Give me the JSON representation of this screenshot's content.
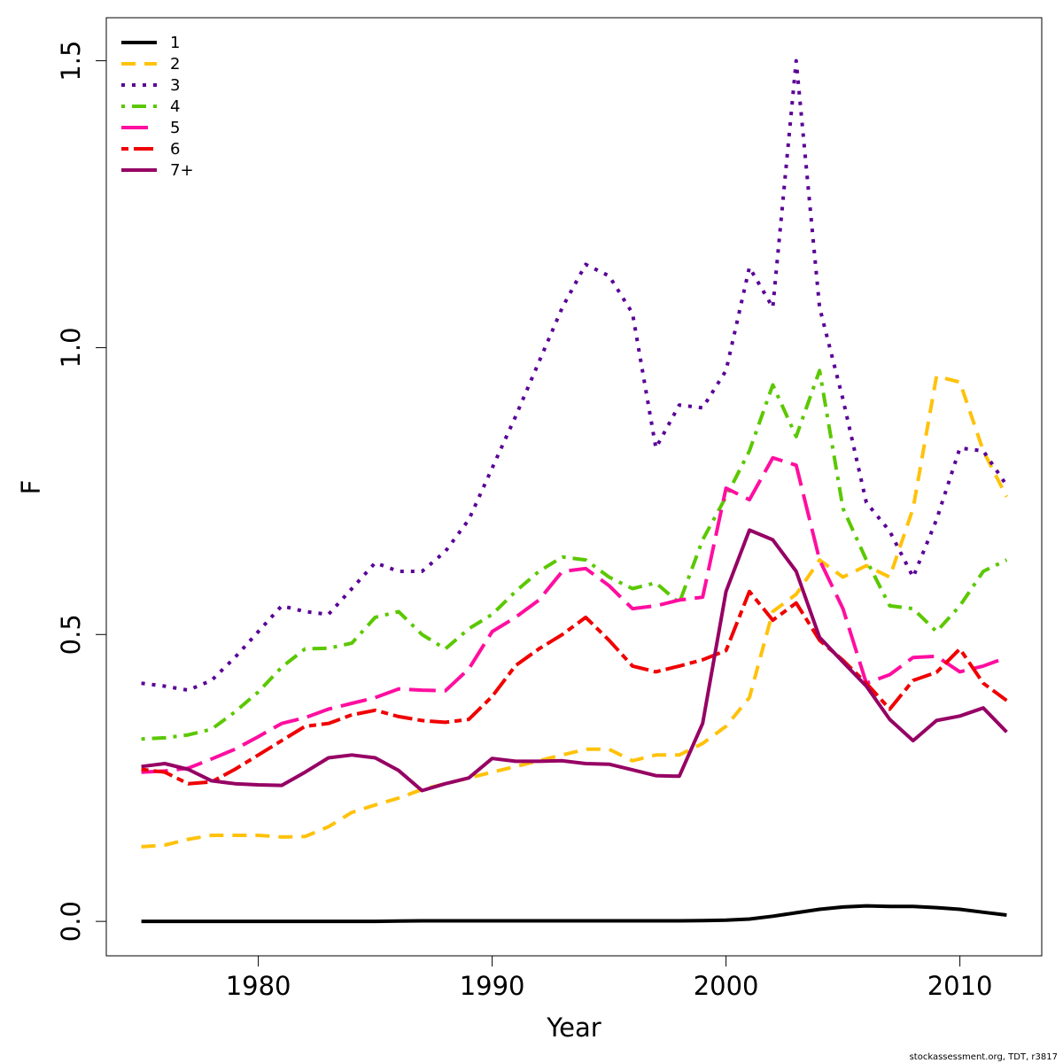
{
  "chart_data": {
    "type": "line",
    "xlabel": "Year",
    "ylabel": "F",
    "xlim": [
      1973.5,
      2013.5
    ],
    "ylim": [
      -0.06,
      1.575
    ],
    "x_ticks": [
      1980,
      1990,
      2000,
      2010
    ],
    "y_ticks": [
      0.0,
      0.5,
      1.0,
      1.5
    ],
    "x_tick_labels": [
      "1980",
      "1990",
      "2000",
      "2010"
    ],
    "y_tick_labels": [
      "0.0",
      "0.5",
      "1.0",
      "1.5"
    ],
    "legend_position": "top-left",
    "grid": false,
    "x": [
      1975,
      1976,
      1977,
      1978,
      1979,
      1980,
      1981,
      1982,
      1983,
      1984,
      1985,
      1986,
      1987,
      1988,
      1989,
      1990,
      1991,
      1992,
      1993,
      1994,
      1995,
      1996,
      1997,
      1998,
      1999,
      2000,
      2001,
      2002,
      2003,
      2004,
      2005,
      2006,
      2007,
      2008,
      2009,
      2010,
      2011,
      2012
    ],
    "series": [
      {
        "name": "1",
        "color": "#000000",
        "dash": "solid",
        "values": [
          0.0,
          0.0,
          0.0,
          0.0,
          0.0,
          0.0,
          0.0,
          0.0,
          0.0,
          0.0,
          0.0,
          0.0005,
          0.001,
          0.001,
          0.001,
          0.001,
          0.001,
          0.001,
          0.001,
          0.001,
          0.001,
          0.001,
          0.001,
          0.001,
          0.0015,
          0.002,
          0.004,
          0.009,
          0.015,
          0.021,
          0.025,
          0.027,
          0.026,
          0.026,
          0.024,
          0.021,
          0.016,
          0.011
        ]
      },
      {
        "name": "2",
        "color": "#FFC20A",
        "dash": "dashed",
        "values": [
          0.13,
          0.133,
          0.143,
          0.15,
          0.15,
          0.15,
          0.147,
          0.148,
          0.165,
          0.19,
          0.203,
          0.215,
          0.23,
          0.24,
          0.25,
          0.26,
          0.27,
          0.28,
          0.29,
          0.3,
          0.3,
          0.28,
          0.29,
          0.29,
          0.31,
          0.34,
          0.39,
          0.54,
          0.57,
          0.63,
          0.6,
          0.62,
          0.6,
          0.72,
          0.95,
          0.94,
          0.82,
          0.74
        ]
      },
      {
        "name": "3",
        "color": "#5A0096",
        "dash": "dotted",
        "values": [
          0.415,
          0.41,
          0.403,
          0.42,
          0.46,
          0.505,
          0.55,
          0.54,
          0.535,
          0.58,
          0.625,
          0.61,
          0.61,
          0.645,
          0.7,
          0.79,
          0.88,
          0.975,
          1.07,
          1.145,
          1.125,
          1.06,
          0.825,
          0.9,
          0.895,
          0.96,
          1.14,
          1.07,
          1.5,
          1.07,
          0.91,
          0.73,
          0.68,
          0.6,
          0.7,
          0.825,
          0.82,
          0.76
        ]
      },
      {
        "name": "4",
        "color": "#5BC800",
        "dash": "dotdash",
        "values": [
          0.318,
          0.32,
          0.325,
          0.335,
          0.365,
          0.4,
          0.443,
          0.475,
          0.476,
          0.485,
          0.53,
          0.54,
          0.5,
          0.475,
          0.51,
          0.535,
          0.575,
          0.61,
          0.635,
          0.63,
          0.6,
          0.58,
          0.59,
          0.555,
          0.665,
          0.74,
          0.82,
          0.935,
          0.845,
          0.96,
          0.72,
          0.63,
          0.55,
          0.545,
          0.505,
          0.55,
          0.61,
          0.63
        ]
      },
      {
        "name": "5",
        "color": "#FF0EA0",
        "dash": "longdash",
        "values": [
          0.26,
          0.262,
          0.267,
          0.283,
          0.3,
          0.322,
          0.345,
          0.355,
          0.37,
          0.38,
          0.39,
          0.405,
          0.403,
          0.402,
          0.44,
          0.505,
          0.53,
          0.56,
          0.61,
          0.615,
          0.585,
          0.545,
          0.55,
          0.56,
          0.565,
          0.755,
          0.735,
          0.808,
          0.795,
          0.63,
          0.545,
          0.415,
          0.43,
          0.46,
          0.462,
          0.435,
          0.445,
          0.46
        ]
      },
      {
        "name": "6",
        "color": "#F00000",
        "dash": "twodash",
        "values": [
          0.265,
          0.26,
          0.24,
          0.243,
          0.265,
          0.29,
          0.315,
          0.34,
          0.345,
          0.36,
          0.368,
          0.357,
          0.35,
          0.347,
          0.352,
          0.392,
          0.446,
          0.475,
          0.5,
          0.53,
          0.49,
          0.445,
          0.435,
          0.445,
          0.456,
          0.472,
          0.575,
          0.525,
          0.555,
          0.49,
          0.455,
          0.415,
          0.37,
          0.42,
          0.434,
          0.475,
          0.415,
          0.385
        ]
      },
      {
        "name": "7+",
        "color": "#960064",
        "dash": "solid",
        "values": [
          0.27,
          0.275,
          0.265,
          0.245,
          0.24,
          0.238,
          0.237,
          0.26,
          0.285,
          0.29,
          0.285,
          0.263,
          0.228,
          0.24,
          0.25,
          0.284,
          0.279,
          0.279,
          0.28,
          0.275,
          0.274,
          0.264,
          0.254,
          0.253,
          0.345,
          0.575,
          0.682,
          0.665,
          0.61,
          0.495,
          0.452,
          0.41,
          0.352,
          0.315,
          0.35,
          0.358,
          0.372,
          0.33
        ]
      }
    ]
  },
  "footer": "stockassessment.org, TDT, r3817"
}
